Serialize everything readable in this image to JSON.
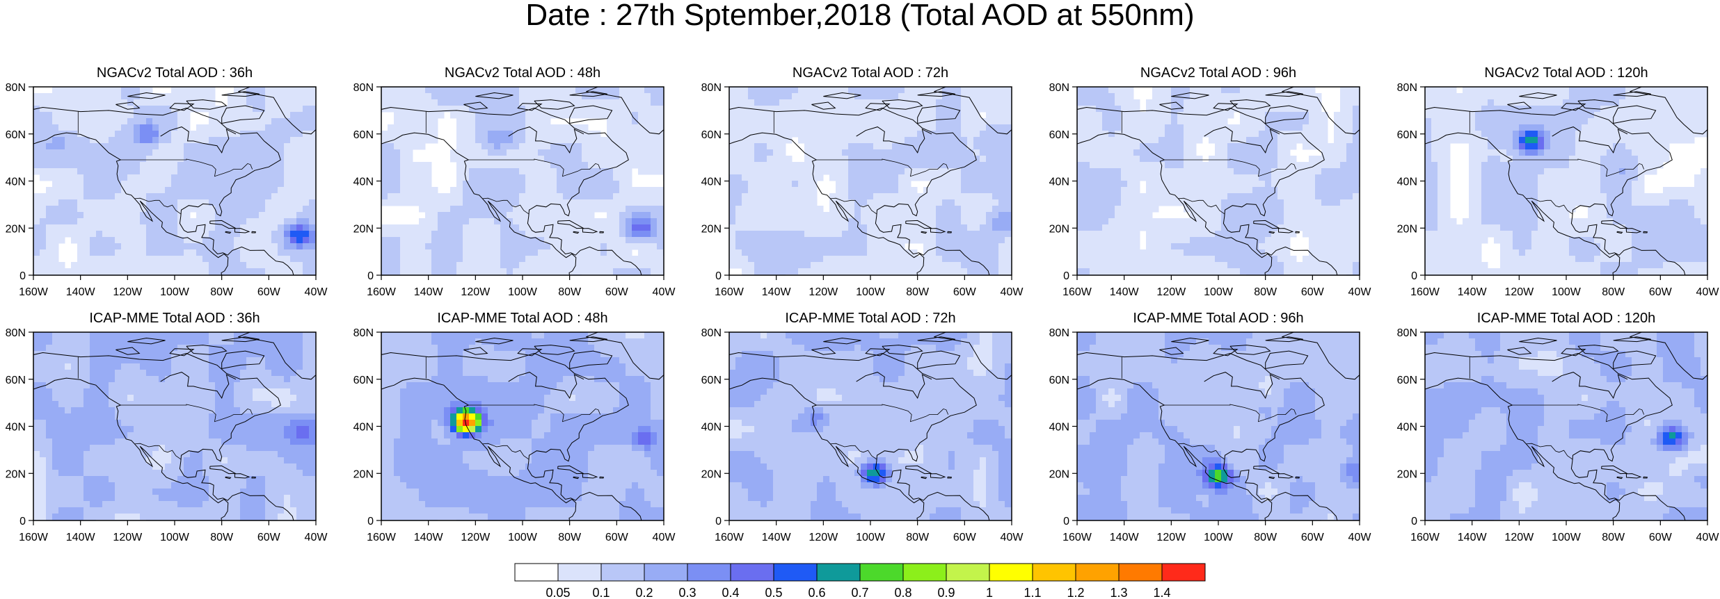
{
  "title": "Date : 27th Sptember,2018 (Total AOD at 550nm)",
  "colors": {
    "land_outline": "#000000",
    "frame": "#000000",
    "background": "#ffffff"
  },
  "chart_data": {
    "type": "heatmap",
    "map_extent": {
      "lon": [
        -160,
        -40
      ],
      "lat": [
        0,
        80
      ]
    },
    "x_ticks": [
      "160W",
      "140W",
      "120W",
      "100W",
      "80W",
      "60W",
      "40W"
    ],
    "y_ticks": [
      "0",
      "20N",
      "40N",
      "60N",
      "80N"
    ],
    "colorbar": {
      "labels": [
        "0.05",
        "0.1",
        "0.2",
        "0.3",
        "0.4",
        "0.5",
        "0.6",
        "0.7",
        "0.8",
        "0.9",
        "1",
        "1.1",
        "1.2",
        "1.3",
        "1.4"
      ],
      "colors": [
        "#ffffff",
        "#dbe3fb",
        "#b9c7f7",
        "#98acf5",
        "#7b8ff4",
        "#6a6ef0",
        "#1f5af5",
        "#0f9a9a",
        "#4cd92b",
        "#8cef1b",
        "#c3f44b",
        "#ffff00",
        "#ffc400",
        "#ffa200",
        "#ff7a00",
        "#ff2a1a"
      ],
      "legend_placement": "bottom-center"
    },
    "panels": [
      {
        "title": "NGACv2 Total AOD : 36h",
        "model": "NGACv2",
        "lead": "36h",
        "background_level": 0.1,
        "features": [
          {
            "lon": -47,
            "lat": 17,
            "level": 0.6
          },
          {
            "lon": -112,
            "lat": 60,
            "level": 0.4
          },
          {
            "lon": -150,
            "lat": 56,
            "level": 0.2
          }
        ]
      },
      {
        "title": "NGACv2 Total AOD : 48h",
        "model": "NGACv2",
        "lead": "48h",
        "background_level": 0.1,
        "features": [
          {
            "lon": -50,
            "lat": 20,
            "level": 0.5
          },
          {
            "lon": -110,
            "lat": 58,
            "level": 0.3
          }
        ]
      },
      {
        "title": "NGACv2 Total AOD : 72h",
        "model": "NGACv2",
        "lead": "72h",
        "background_level": 0.1,
        "features": [
          {
            "lon": -45,
            "lat": 22,
            "level": 0.3
          },
          {
            "lon": -48,
            "lat": 60,
            "level": 0.2
          }
        ]
      },
      {
        "title": "NGACv2 Total AOD : 96h",
        "model": "NGACv2",
        "lead": "96h",
        "background_level": 0.1,
        "features": [
          {
            "lon": -45,
            "lat": 40,
            "level": 0.2
          }
        ]
      },
      {
        "title": "NGACv2 Total AOD : 120h",
        "model": "NGACv2",
        "lead": "120h",
        "background_level": 0.1,
        "features": [
          {
            "lon": -115,
            "lat": 57,
            "level": 0.7
          },
          {
            "lon": -75,
            "lat": 45,
            "level": 0.2
          }
        ]
      },
      {
        "title": "ICAP-MME Total AOD : 36h",
        "model": "ICAP-MME",
        "lead": "36h",
        "background_level": 0.2,
        "features": [
          {
            "lon": -46,
            "lat": 37,
            "level": 0.4
          },
          {
            "lon": -100,
            "lat": 40,
            "level": 0.2
          }
        ]
      },
      {
        "title": "ICAP-MME Total AOD : 48h",
        "model": "ICAP-MME",
        "lead": "48h",
        "background_level": 0.2,
        "features": [
          {
            "lon": -49,
            "lat": 35,
            "level": 0.5
          },
          {
            "lon": -124,
            "lat": 42,
            "level": 1.4
          }
        ]
      },
      {
        "title": "ICAP-MME Total AOD : 72h",
        "model": "ICAP-MME",
        "lead": "72h",
        "background_level": 0.2,
        "features": [
          {
            "lon": -98,
            "lat": 20,
            "level": 0.8
          },
          {
            "lon": -50,
            "lat": 35,
            "level": 0.3
          },
          {
            "lon": -123,
            "lat": 44,
            "level": 0.4
          }
        ]
      },
      {
        "title": "ICAP-MME Total AOD : 96h",
        "model": "ICAP-MME",
        "lead": "96h",
        "background_level": 0.2,
        "features": [
          {
            "lon": -42,
            "lat": 20,
            "level": 0.4
          },
          {
            "lon": -100,
            "lat": 19,
            "level": 0.8
          },
          {
            "lon": -80,
            "lat": 48,
            "level": 0.3
          }
        ]
      },
      {
        "title": "ICAP-MME Total AOD : 120h",
        "model": "ICAP-MME",
        "lead": "120h",
        "background_level": 0.2,
        "features": [
          {
            "lon": -55,
            "lat": 35,
            "level": 0.7
          },
          {
            "lon": -42,
            "lat": 18,
            "level": 0.3
          },
          {
            "lon": -80,
            "lat": 48,
            "level": 0.3
          }
        ]
      }
    ]
  }
}
